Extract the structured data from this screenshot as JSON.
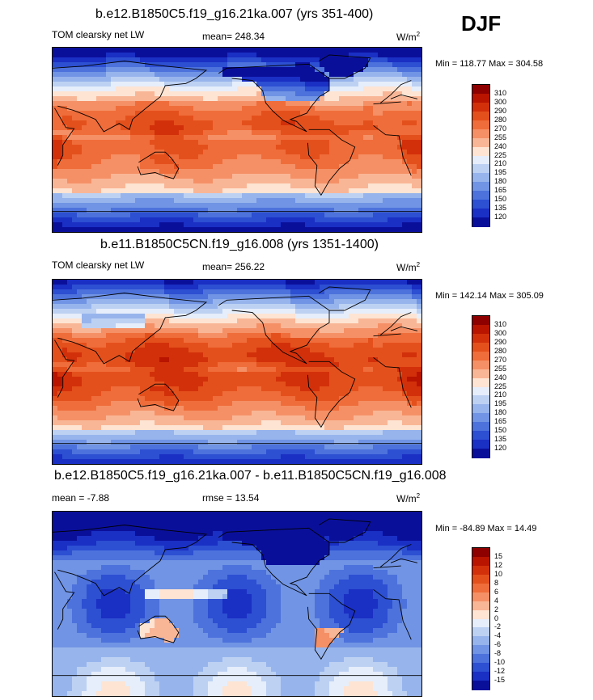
{
  "season": "DJF",
  "panels": [
    {
      "title": "b.e12.B1850C5.f19_g16.21ka.007 (yrs 351-400)",
      "left_label": "TOM clearsky net LW",
      "mean_label": "mean= 248.34",
      "units": "W/m",
      "units_sup": "2",
      "minmax": "Min = 118.77 Max = 304.58",
      "colorbar": {
        "labels": [
          "310",
          "300",
          "290",
          "280",
          "270",
          "255",
          "240",
          "225",
          "210",
          "195",
          "180",
          "165",
          "150",
          "135",
          "120"
        ],
        "colors": [
          "#8e0000",
          "#b81400",
          "#d2300a",
          "#e4501c",
          "#ef6d3a",
          "#f59066",
          "#f9b696",
          "#fde4d3",
          "#e6eefb",
          "#bdd1f3",
          "#97b4ec",
          "#7194e4",
          "#4d72dc",
          "#2d4fd2",
          "#1a2fc4",
          "#0a0f9a"
        ]
      },
      "field": "clearsky_lgm"
    },
    {
      "title": "b.e11.B1850C5CN.f19_g16.008 (yrs 1351-1400)",
      "left_label": "TOM clearsky net LW",
      "mean_label": "mean= 256.22",
      "units": "W/m",
      "units_sup": "2",
      "minmax": "Min = 142.14 Max = 305.09",
      "colorbar": {
        "labels": [
          "310",
          "300",
          "290",
          "280",
          "270",
          "255",
          "240",
          "225",
          "210",
          "195",
          "180",
          "165",
          "150",
          "135",
          "120"
        ],
        "colors": [
          "#8e0000",
          "#b81400",
          "#d2300a",
          "#e4501c",
          "#ef6d3a",
          "#f59066",
          "#f9b696",
          "#fde4d3",
          "#e6eefb",
          "#bdd1f3",
          "#97b4ec",
          "#7194e4",
          "#4d72dc",
          "#2d4fd2",
          "#1a2fc4",
          "#0a0f9a"
        ]
      },
      "field": "clearsky_pi"
    },
    {
      "title": "b.e12.B1850C5.f19_g16.21ka.007 - b.e11.B1850C5CN.f19_g16.008",
      "left_label": "mean =  -7.88",
      "mean_label": "rmse =  13.54",
      "units": "W/m",
      "units_sup": "2",
      "minmax": "Min = -84.89 Max =  14.49",
      "colorbar": {
        "labels": [
          "15",
          "12",
          "10",
          "8",
          "6",
          "4",
          "2",
          "0",
          "-2",
          "-4",
          "-6",
          "-8",
          "-10",
          "-12",
          "-15"
        ],
        "colors": [
          "#8e0000",
          "#b81400",
          "#d2300a",
          "#e4501c",
          "#ef6d3a",
          "#f59066",
          "#f9b696",
          "#fde4d3",
          "#e6eefb",
          "#bdd1f3",
          "#97b4ec",
          "#7194e4",
          "#4d72dc",
          "#2d4fd2",
          "#1a2fc4",
          "#0a0f9a"
        ]
      },
      "field": "difference"
    }
  ]
}
